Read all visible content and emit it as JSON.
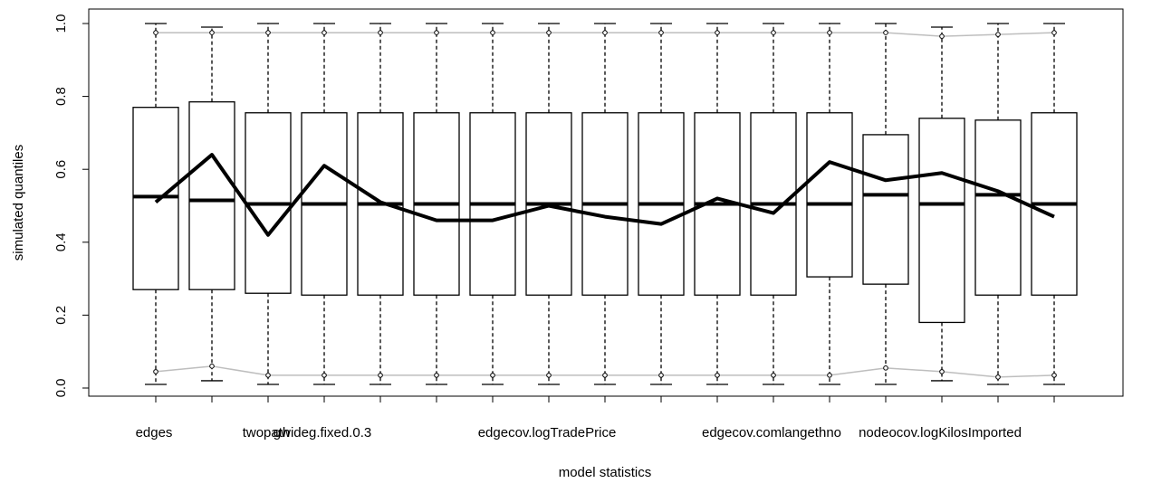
{
  "chart_data": {
    "type": "boxplot",
    "xlabel": "model statistics",
    "ylabel": "simulated quantiles",
    "ylim": [
      0.0,
      1.0
    ],
    "yticks": [
      "0.0",
      "0.2",
      "0.4",
      "0.6",
      "0.8",
      "1.0"
    ],
    "grid": false,
    "categories": [
      "edges",
      "",
      "twopath",
      "gwideg.fixed.0.3",
      "",
      "",
      "",
      "edgecov.logTradePrice",
      "",
      "",
      "",
      "edgecov.comlangethno",
      "",
      "",
      "nodeocov.logKilosImported",
      "",
      ""
    ],
    "boxes": [
      {
        "whisker_low": 0.01,
        "q1": 0.27,
        "median": 0.525,
        "q3": 0.77,
        "whisker_high": 1.0
      },
      {
        "whisker_low": 0.02,
        "q1": 0.27,
        "median": 0.515,
        "q3": 0.785,
        "whisker_high": 0.99
      },
      {
        "whisker_low": 0.01,
        "q1": 0.26,
        "median": 0.505,
        "q3": 0.755,
        "whisker_high": 1.0
      },
      {
        "whisker_low": 0.01,
        "q1": 0.255,
        "median": 0.505,
        "q3": 0.755,
        "whisker_high": 1.0
      },
      {
        "whisker_low": 0.01,
        "q1": 0.255,
        "median": 0.505,
        "q3": 0.755,
        "whisker_high": 1.0
      },
      {
        "whisker_low": 0.01,
        "q1": 0.255,
        "median": 0.505,
        "q3": 0.755,
        "whisker_high": 1.0
      },
      {
        "whisker_low": 0.01,
        "q1": 0.255,
        "median": 0.505,
        "q3": 0.755,
        "whisker_high": 1.0
      },
      {
        "whisker_low": 0.01,
        "q1": 0.255,
        "median": 0.505,
        "q3": 0.755,
        "whisker_high": 1.0
      },
      {
        "whisker_low": 0.01,
        "q1": 0.255,
        "median": 0.505,
        "q3": 0.755,
        "whisker_high": 1.0
      },
      {
        "whisker_low": 0.01,
        "q1": 0.255,
        "median": 0.505,
        "q3": 0.755,
        "whisker_high": 1.0
      },
      {
        "whisker_low": 0.01,
        "q1": 0.255,
        "median": 0.505,
        "q3": 0.755,
        "whisker_high": 1.0
      },
      {
        "whisker_low": 0.01,
        "q1": 0.255,
        "median": 0.505,
        "q3": 0.755,
        "whisker_high": 1.0
      },
      {
        "whisker_low": 0.01,
        "q1": 0.305,
        "median": 0.505,
        "q3": 0.755,
        "whisker_high": 1.0
      },
      {
        "whisker_low": 0.01,
        "q1": 0.285,
        "median": 0.53,
        "q3": 0.695,
        "whisker_high": 1.0
      },
      {
        "whisker_low": 0.02,
        "q1": 0.18,
        "median": 0.505,
        "q3": 0.74,
        "whisker_high": 0.99
      },
      {
        "whisker_low": 0.01,
        "q1": 0.255,
        "median": 0.53,
        "q3": 0.735,
        "whisker_high": 1.0
      },
      {
        "whisker_low": 0.01,
        "q1": 0.255,
        "median": 0.505,
        "q3": 0.755,
        "whisker_high": 1.0
      }
    ],
    "series": [
      {
        "values": [
          0.51,
          0.64,
          0.42,
          0.61,
          0.51,
          0.46,
          0.46,
          0.5,
          0.47,
          0.45,
          0.52,
          0.48,
          0.62,
          0.57,
          0.59,
          0.54,
          0.47
        ]
      },
      {
        "values": [
          0.975,
          0.975,
          0.975,
          0.975,
          0.975,
          0.975,
          0.975,
          0.975,
          0.975,
          0.975,
          0.975,
          0.975,
          0.975,
          0.975,
          0.965,
          0.97,
          0.975
        ]
      },
      {
        "values": [
          0.045,
          0.06,
          0.035,
          0.035,
          0.035,
          0.035,
          0.035,
          0.035,
          0.035,
          0.035,
          0.035,
          0.035,
          0.035,
          0.055,
          0.045,
          0.03,
          0.035
        ]
      }
    ],
    "colors": {
      "observed": "#000000",
      "bounds": "#bebebe",
      "box": "#000000"
    }
  }
}
